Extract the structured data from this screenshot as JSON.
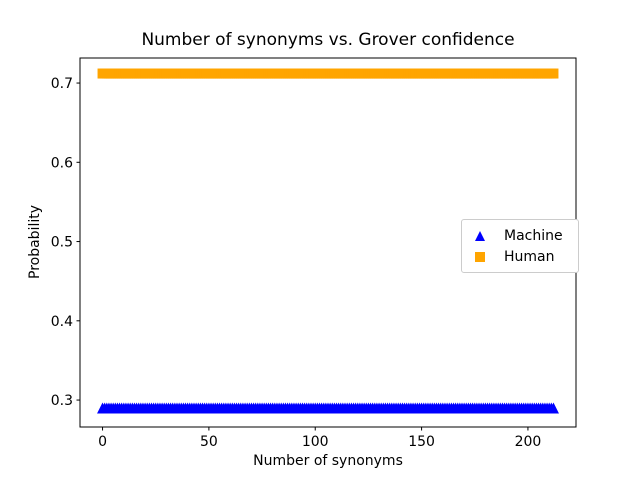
{
  "figure": {
    "background": "#ffffff",
    "text_color": "#000000"
  },
  "chart_data": {
    "type": "scatter",
    "title": "Number of synonyms vs. Grover confidence",
    "xlabel": "Number of synonyms",
    "ylabel": "Probability",
    "xlim": [
      -10.6,
      222.6
    ],
    "ylim": [
      0.266,
      0.7316
    ],
    "xticks": [
      0,
      50,
      100,
      150,
      200
    ],
    "yticks": [
      0.3,
      0.4,
      0.5,
      0.6,
      0.7
    ],
    "grid": false,
    "legend": {
      "position": "center-right",
      "border_color": "#cccccc",
      "entries": [
        {
          "label": "Machine",
          "marker": "triangle-up",
          "color": "#0000ff"
        },
        {
          "label": "Human",
          "marker": "square",
          "color": "#ffa500"
        }
      ]
    },
    "series": [
      {
        "name": "Machine",
        "marker": "triangle-up",
        "color": "#0000ff",
        "x_start": 0,
        "x_end": 212,
        "x_step": 1,
        "y_constant": 0.29
      },
      {
        "name": "Human",
        "marker": "square",
        "color": "#ffa500",
        "x_start": 0,
        "x_end": 212,
        "x_step": 1,
        "y_constant": 0.712
      }
    ]
  }
}
